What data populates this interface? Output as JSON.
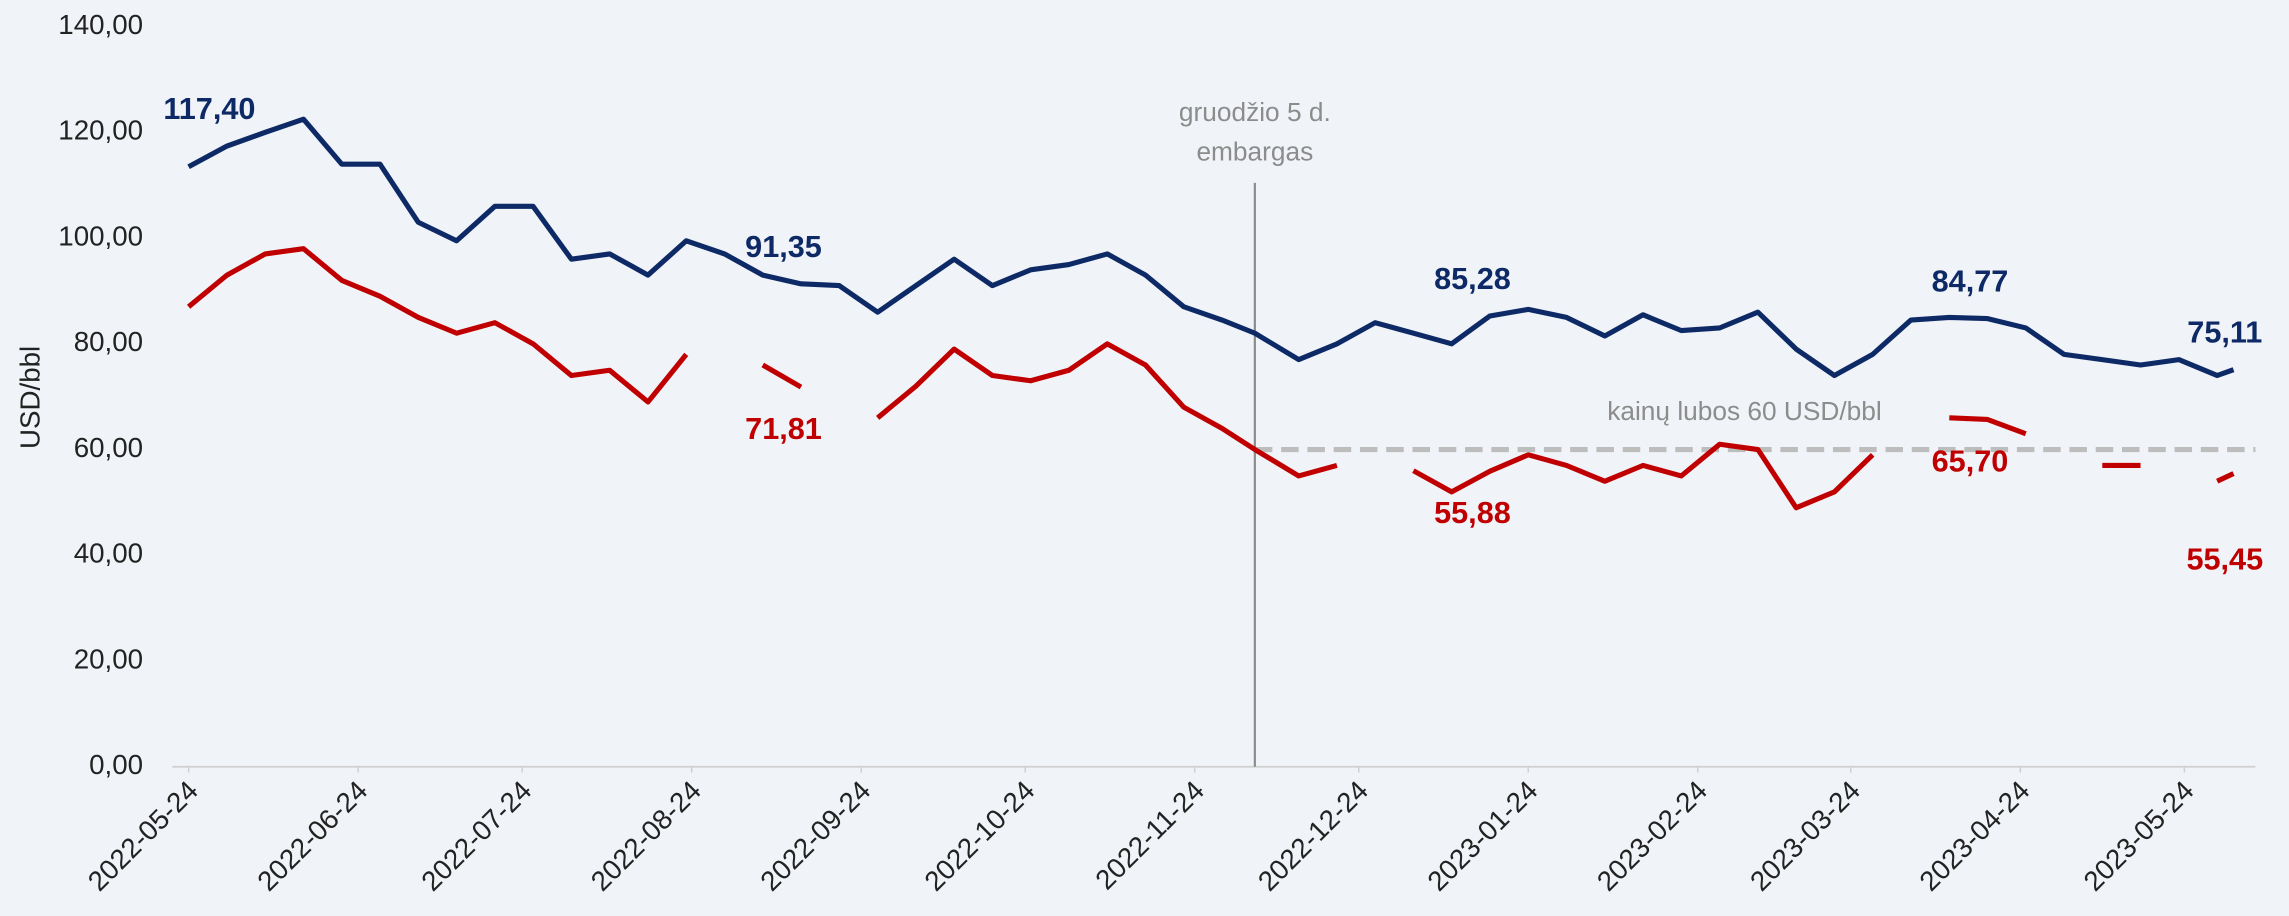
{
  "chart_data": {
    "type": "line",
    "y_label": "USD/bbl",
    "x": [
      "2022-05-24",
      "2022-05-31",
      "2022-06-07",
      "2022-06-14",
      "2022-06-21",
      "2022-06-28",
      "2022-07-05",
      "2022-07-12",
      "2022-07-19",
      "2022-07-26",
      "2022-08-02",
      "2022-08-09",
      "2022-08-16",
      "2022-08-23",
      "2022-08-30",
      "2022-09-06",
      "2022-09-13",
      "2022-09-20",
      "2022-09-27",
      "2022-10-04",
      "2022-10-11",
      "2022-10-18",
      "2022-10-25",
      "2022-11-01",
      "2022-11-08",
      "2022-11-15",
      "2022-11-22",
      "2022-11-29",
      "2022-12-05",
      "2022-12-13",
      "2022-12-20",
      "2022-12-27",
      "2023-01-03",
      "2023-01-10",
      "2023-01-17",
      "2023-01-24",
      "2023-01-31",
      "2023-02-07",
      "2023-02-14",
      "2023-02-21",
      "2023-02-28",
      "2023-03-07",
      "2023-03-14",
      "2023-03-21",
      "2023-03-28",
      "2023-04-04",
      "2023-04-11",
      "2023-04-18",
      "2023-04-25",
      "2023-05-02",
      "2023-05-09",
      "2023-05-16",
      "2023-05-23",
      "2023-05-30",
      "2023-06-02"
    ],
    "series": [
      {
        "name": "Brent",
        "color": "#0d2a66",
        "label_side": "above",
        "values": [
          113.5,
          117.4,
          120,
          122.5,
          114,
          114,
          103,
          99.5,
          106,
          106,
          96,
          97,
          93,
          99.5,
          97,
          93,
          91.35,
          91,
          86,
          91,
          96,
          91,
          94,
          95,
          97,
          93,
          87,
          84.5,
          82,
          77,
          80,
          84,
          82,
          80,
          85.28,
          86.5,
          85,
          81.5,
          85.5,
          82.5,
          83,
          86,
          79,
          74,
          78,
          84.5,
          85,
          84.77,
          83,
          78,
          77,
          76,
          77,
          74,
          75.11
        ],
        "value_labels": [
          null,
          "117,40",
          null,
          null,
          null,
          null,
          null,
          null,
          null,
          null,
          null,
          null,
          null,
          null,
          null,
          null,
          "91,35",
          null,
          null,
          null,
          null,
          null,
          null,
          null,
          null,
          null,
          null,
          null,
          null,
          null,
          null,
          null,
          null,
          null,
          "85,28",
          null,
          null,
          null,
          null,
          null,
          null,
          null,
          null,
          null,
          null,
          null,
          null,
          "84,77",
          null,
          null,
          null,
          null,
          null,
          null,
          "75,11"
        ]
      },
      {
        "name": "Urals",
        "color": "#c00000",
        "label_side": "below",
        "values": [
          87,
          93,
          97,
          98,
          92,
          89,
          85,
          82,
          84,
          80,
          74,
          75,
          69,
          78,
          null,
          76,
          71.81,
          null,
          66,
          72,
          79,
          74,
          73,
          75,
          80,
          76,
          68,
          64,
          60,
          55,
          57,
          null,
          56,
          52,
          55.88,
          59,
          57,
          54,
          57,
          55,
          61,
          60,
          49,
          52,
          59,
          null,
          66,
          65.7,
          63,
          null,
          57,
          57,
          null,
          54,
          55.45
        ],
        "value_labels": [
          null,
          null,
          null,
          null,
          null,
          null,
          null,
          null,
          null,
          null,
          null,
          null,
          null,
          null,
          null,
          null,
          "71,81",
          null,
          null,
          null,
          null,
          null,
          null,
          null,
          null,
          null,
          null,
          null,
          null,
          null,
          null,
          null,
          null,
          null,
          "55,88",
          null,
          null,
          null,
          null,
          null,
          null,
          null,
          null,
          null,
          null,
          null,
          null,
          "65,70",
          null,
          null,
          null,
          null,
          null,
          null,
          "55,45"
        ]
      }
    ],
    "xlim": [
      "2022-05-21",
      "2023-06-06"
    ],
    "xticks": [
      "2022-05-24",
      "2022-06-24",
      "2022-07-24",
      "2022-08-24",
      "2022-09-24",
      "2022-10-24",
      "2022-11-24",
      "2022-12-24",
      "2023-01-24",
      "2023-02-24",
      "2023-03-24",
      "2023-04-24",
      "2023-05-24"
    ],
    "ylim": [
      0,
      140
    ],
    "yticks": [
      {
        "value": 0,
        "label": "0,00"
      },
      {
        "value": 20,
        "label": "20,00"
      },
      {
        "value": 40,
        "label": "40,00"
      },
      {
        "value": 60,
        "label": "60,00"
      },
      {
        "value": 80,
        "label": "80,00"
      },
      {
        "value": 100,
        "label": "100,00"
      },
      {
        "value": 120,
        "label": "120,00"
      },
      {
        "value": 140,
        "label": "140,00"
      }
    ],
    "vline": {
      "x": "2022-12-05",
      "label": [
        "gruodžio 5 d.",
        "embargas"
      ]
    },
    "hline": {
      "y": 60,
      "from": "2022-12-05",
      "label": "kainų lubos 60 USD/bbl"
    }
  }
}
